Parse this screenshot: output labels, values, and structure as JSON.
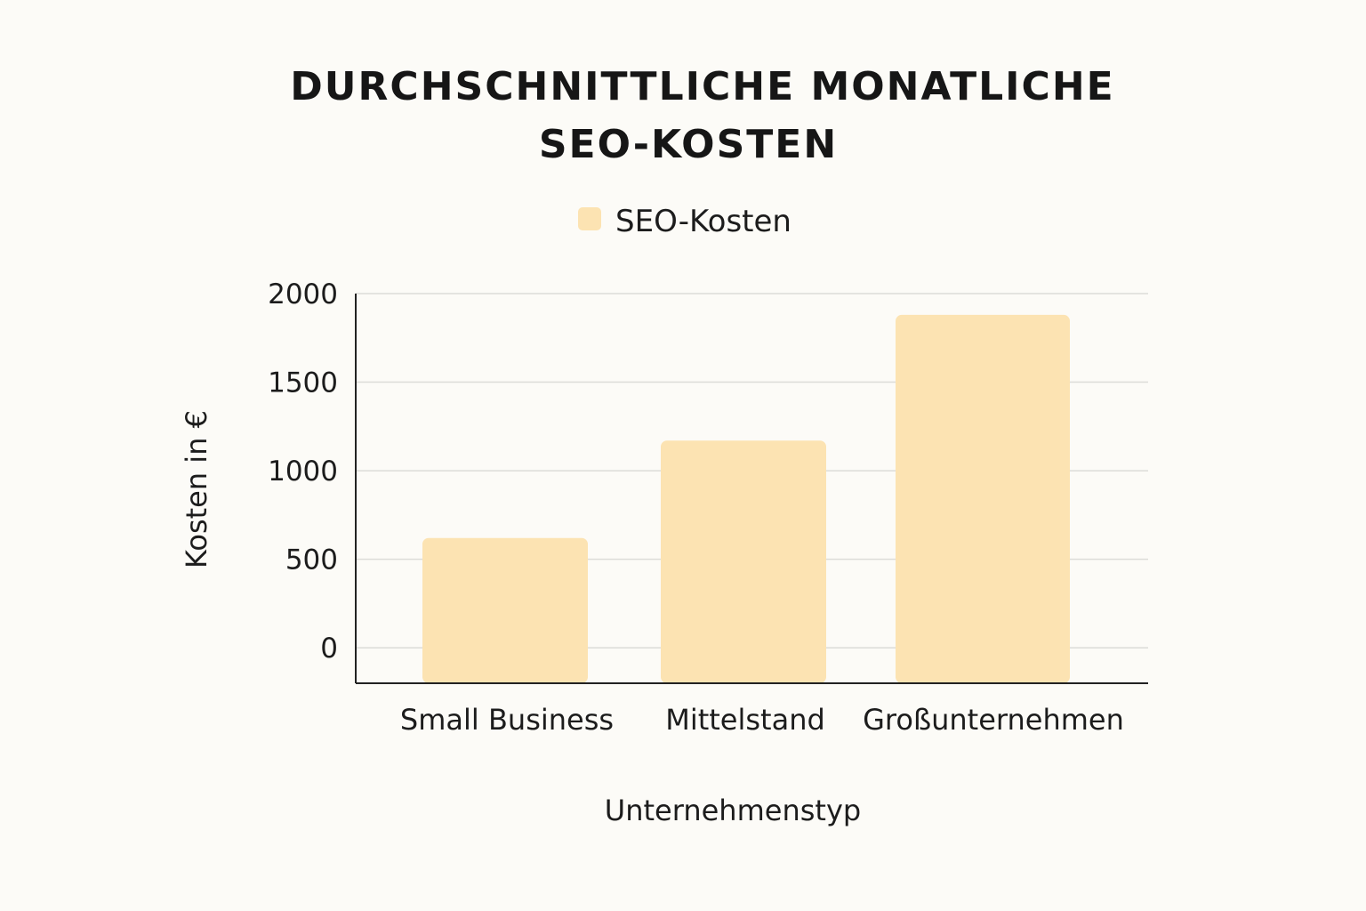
{
  "chart_data": {
    "type": "bar",
    "title_lines": [
      "DURCHSCHNITTLICHE MONATLICHE",
      "SEO-KOSTEN"
    ],
    "legend": [
      "SEO-Kosten"
    ],
    "legend_position": "top-center",
    "categories": [
      "Small Business",
      "Mittelstand",
      "Großunternehmen"
    ],
    "series": [
      {
        "name": "SEO-Kosten",
        "values": [
          620,
          1170,
          1880
        ],
        "color": "#fce3b2"
      }
    ],
    "xlabel": "Unternehmenstyp",
    "ylabel": "Kosten in €",
    "ylim": [
      -200,
      2000
    ],
    "yticks": [
      0,
      500,
      1000,
      1500,
      2000
    ],
    "grid": true
  }
}
